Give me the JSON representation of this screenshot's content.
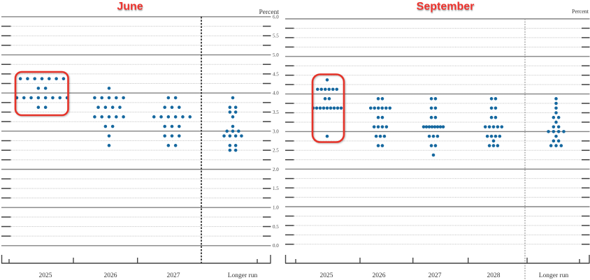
{
  "chart_data": [
    {
      "type": "dot_plot",
      "title": "June",
      "percent_label": "Percent",
      "ylabel_ticks": [
        "6.0",
        "5.5",
        "5.0",
        "4.5",
        "4.0",
        "3.5",
        "3.0",
        "2.5",
        "2.0",
        "1.5",
        "1.0",
        "0.5",
        "0.0"
      ],
      "ylim": [
        0.0,
        6.0
      ],
      "grid_step": 0.25,
      "show_value_labels": true,
      "columns": [
        {
          "label": "2025",
          "highlight": true,
          "dots": [
            [
              4.375,
              7
            ],
            [
              4.125,
              2
            ],
            [
              3.875,
              8
            ],
            [
              3.625,
              2
            ]
          ]
        },
        {
          "label": "2026",
          "dots": [
            [
              4.125,
              1
            ],
            [
              3.875,
              5
            ],
            [
              3.625,
              4
            ],
            [
              3.375,
              5
            ],
            [
              3.125,
              2
            ],
            [
              2.875,
              1
            ],
            [
              2.625,
              1
            ]
          ]
        },
        {
          "label": "2027",
          "dots": [
            [
              3.875,
              2
            ],
            [
              3.625,
              3
            ],
            [
              3.375,
              6
            ],
            [
              3.125,
              3
            ],
            [
              2.875,
              3
            ],
            [
              2.625,
              2
            ]
          ]
        },
        {
          "label": "Longer run",
          "longer_run": true,
          "dots": [
            [
              3.875,
              1
            ],
            [
              3.625,
              2
            ],
            [
              3.5,
              2
            ],
            [
              3.375,
              1
            ],
            [
              3.125,
              1
            ],
            [
              3.0,
              3
            ],
            [
              2.875,
              4
            ],
            [
              2.625,
              2
            ],
            [
              2.5,
              2
            ]
          ]
        }
      ]
    },
    {
      "type": "dot_plot",
      "title": "September",
      "percent_label": "Percent",
      "ylabel_ticks": [],
      "ylim": [
        0.0,
        6.0
      ],
      "grid_step": 0.25,
      "show_value_labels": false,
      "columns": [
        {
          "label": "2025",
          "highlight": true,
          "dots": [
            [
              4.375,
              1
            ],
            [
              4.125,
              6
            ],
            [
              3.875,
              2
            ],
            [
              3.625,
              9
            ],
            [
              2.875,
              1
            ]
          ]
        },
        {
          "label": "2026",
          "dots": [
            [
              3.875,
              2
            ],
            [
              3.625,
              6
            ],
            [
              3.375,
              2
            ],
            [
              3.125,
              4
            ],
            [
              2.875,
              3
            ],
            [
              2.625,
              2
            ]
          ]
        },
        {
          "label": "2027",
          "dots": [
            [
              3.875,
              2
            ],
            [
              3.625,
              2
            ],
            [
              3.375,
              2
            ],
            [
              3.125,
              8
            ],
            [
              2.875,
              3
            ],
            [
              2.625,
              2
            ],
            [
              2.375,
              1
            ]
          ]
        },
        {
          "label": "2028",
          "dots": [
            [
              3.875,
              2
            ],
            [
              3.625,
              2
            ],
            [
              3.375,
              2
            ],
            [
              3.125,
              5
            ],
            [
              2.875,
              4
            ],
            [
              2.75,
              1
            ],
            [
              2.625,
              3
            ]
          ]
        },
        {
          "label": "Longer run",
          "longer_run": true,
          "dots": [
            [
              3.875,
              1
            ],
            [
              3.75,
              1
            ],
            [
              3.625,
              1
            ],
            [
              3.5,
              1
            ],
            [
              3.375,
              2
            ],
            [
              3.25,
              1
            ],
            [
              3.125,
              2
            ],
            [
              3.0,
              4
            ],
            [
              2.875,
              1
            ],
            [
              2.75,
              2
            ],
            [
              2.625,
              3
            ]
          ]
        }
      ]
    }
  ],
  "colors": {
    "dot": "#16689f",
    "highlight_box": "#e63329",
    "title": "#ee332e",
    "solid_grid": "#838383",
    "dotted_grid": "#bdbdbd",
    "tick": "#3f3f3f"
  }
}
